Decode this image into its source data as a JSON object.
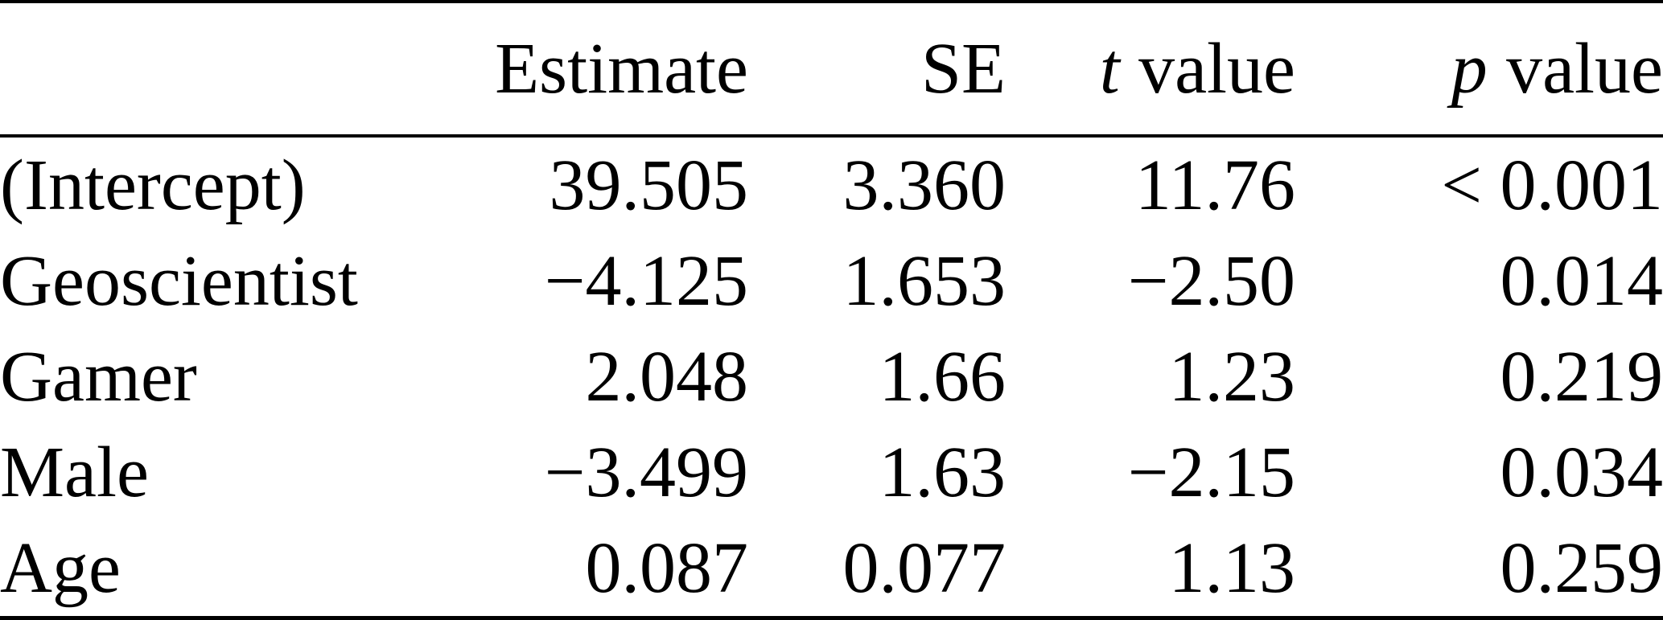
{
  "header": {
    "estimate": "Estimate",
    "se": "SE",
    "t_symbol": "t",
    "p_symbol": "p",
    "value_word": "value"
  },
  "chart_data": {
    "type": "table",
    "columns": [
      "",
      "Estimate",
      "SE",
      "t value",
      "p value"
    ],
    "rows": [
      [
        "(Intercept)",
        "39.505",
        "3.360",
        "11.76",
        "< 0.001"
      ],
      [
        "Geoscientist",
        "−4.125",
        "1.653",
        "−2.50",
        "0.014"
      ],
      [
        "Gamer",
        "2.048",
        "1.66",
        "1.23",
        "0.219"
      ],
      [
        "Male",
        "−3.499",
        "1.63",
        "−2.15",
        "0.034"
      ],
      [
        "Age",
        "0.087",
        "0.077",
        "1.13",
        "0.259"
      ]
    ]
  },
  "colors": {
    "text": "#000000",
    "background": "#ffffff",
    "rule": "#000000"
  }
}
